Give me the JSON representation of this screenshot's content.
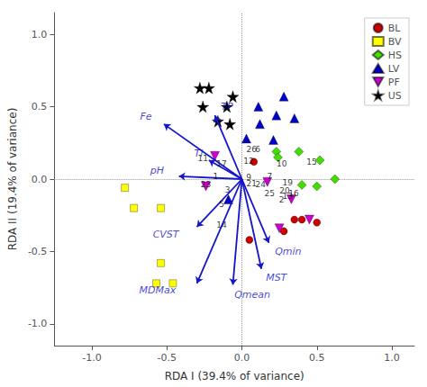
{
  "chart_data": {
    "type": "scatter",
    "title": "",
    "xlabel": "RDA I (39.4% of variance)",
    "ylabel": "RDA II (19.4% of variance)",
    "xlim": [
      -1.25,
      1.15
    ],
    "ylim": [
      -1.15,
      1.15
    ],
    "xticks": [
      {
        "value": -1.0,
        "label": "-1.0"
      },
      -0.5,
      {
        "value": 0.0,
        "label": "0.0"
      },
      0.5,
      {
        "value": 1.0,
        "label": "1.0"
      }
    ],
    "yticks": [
      {
        "value": -1.0,
        "label": "-1.0"
      },
      -0.5,
      {
        "value": 0.0,
        "label": "0.0"
      },
      0.5,
      {
        "value": 1.0,
        "label": "1.0"
      }
    ],
    "grid": false,
    "legend": "upper right",
    "origin": [
      0,
      0
    ],
    "arrow_color": "#1414CC",
    "arrows": [
      {
        "text": "Fe",
        "x": -0.52,
        "y": 0.38,
        "text_x": -0.6,
        "text_y": 0.43
      },
      {
        "text": "TP",
        "x": -0.18,
        "y": 0.44,
        "text_x": -0.14,
        "text_y": 0.5
      },
      {
        "text": "pH",
        "x": -0.42,
        "y": 0.02,
        "text_x": -0.52,
        "text_y": 0.06
      },
      {
        "text": "Ti",
        "x": -0.22,
        "y": 0.13,
        "text_x": -0.26,
        "text_y": 0.18
      },
      {
        "text": "CVST",
        "x": -0.3,
        "y": -0.33,
        "text_x": -0.42,
        "text_y": -0.38
      },
      {
        "text": "MDMax",
        "x": -0.3,
        "y": -0.72,
        "text_x": -0.44,
        "text_y": -0.77
      },
      {
        "text": "Qmean",
        "x": -0.06,
        "y": -0.73,
        "text_x": -0.05,
        "text_y": -0.8
      },
      {
        "text": "Qmin",
        "x": 0.18,
        "y": -0.44,
        "text_x": 0.22,
        "text_y": -0.5
      },
      {
        "text": "MST",
        "x": 0.13,
        "y": -0.62,
        "text_x": 0.16,
        "text_y": -0.68
      }
    ],
    "series": [
      {
        "name": "BL",
        "color": "#CC0000",
        "marker": "circle",
        "values": [
          [
            0.08,
            0.12
          ],
          [
            0.35,
            -0.28
          ],
          [
            0.4,
            -0.28
          ],
          [
            0.28,
            -0.36
          ],
          [
            0.5,
            -0.3
          ],
          [
            0.05,
            -0.42
          ]
        ]
      },
      {
        "name": "BV",
        "color": "#FFFF00",
        "marker": "square",
        "values": [
          [
            -0.78,
            -0.06
          ],
          [
            -0.72,
            -0.2
          ],
          [
            -0.54,
            -0.2
          ],
          [
            -0.54,
            -0.58
          ],
          [
            -0.46,
            -0.72
          ],
          [
            -0.57,
            -0.72
          ]
        ]
      },
      {
        "name": "HS",
        "color": "#44DD00",
        "marker": "diamond",
        "values": [
          [
            0.52,
            0.13
          ],
          [
            0.62,
            0.0
          ],
          [
            0.5,
            -0.05
          ],
          [
            0.38,
            0.19
          ],
          [
            0.4,
            -0.04
          ],
          [
            0.23,
            0.19
          ],
          [
            0.24,
            0.15
          ]
        ]
      },
      {
        "name": "LV",
        "color": "#0000CC",
        "marker": "triangle-up",
        "values": [
          [
            0.03,
            0.28
          ],
          [
            0.12,
            0.38
          ],
          [
            0.21,
            0.27
          ],
          [
            0.28,
            0.57
          ],
          [
            0.11,
            0.5
          ],
          [
            0.23,
            0.44
          ],
          [
            0.35,
            0.42
          ],
          [
            -0.09,
            -0.14
          ]
        ]
      },
      {
        "name": "PF",
        "color": "#CC00CC",
        "marker": "triangle-down",
        "values": [
          [
            -0.18,
            0.16
          ],
          [
            -0.24,
            -0.05
          ],
          [
            0.17,
            -0.02
          ],
          [
            0.25,
            -0.34
          ],
          [
            0.45,
            -0.28
          ],
          [
            0.33,
            -0.14
          ]
        ]
      },
      {
        "name": "US",
        "color": "#000000",
        "marker": "star",
        "values": [
          [
            -0.22,
            0.63
          ],
          [
            -0.28,
            0.63
          ],
          [
            -0.06,
            0.57
          ],
          [
            -0.26,
            0.5
          ],
          [
            -0.1,
            0.5
          ],
          [
            -0.16,
            0.4
          ],
          [
            -0.08,
            0.38
          ]
        ]
      }
    ],
    "annotations": [
      {
        "text": "1",
        "x": -0.175,
        "y": 0.02
      },
      {
        "text": "3",
        "x": -0.095,
        "y": -0.075
      },
      {
        "text": "5",
        "x": -0.135,
        "y": -0.175
      },
      {
        "text": "7",
        "x": 0.185,
        "y": 0.02
      },
      {
        "text": "9",
        "x": 0.045,
        "y": 0.01
      },
      {
        "text": "10",
        "x": 0.265,
        "y": 0.105
      },
      {
        "text": "11",
        "x": -0.26,
        "y": 0.145
      },
      {
        "text": "12",
        "x": 0.045,
        "y": 0.125
      },
      {
        "text": "13",
        "x": 0.305,
        "y": -0.115
      },
      {
        "text": "14",
        "x": -0.135,
        "y": -0.315
      },
      {
        "text": "15",
        "x": 0.465,
        "y": 0.12
      },
      {
        "text": "16",
        "x": 0.345,
        "y": -0.1
      },
      {
        "text": "17",
        "x": -0.135,
        "y": 0.105
      },
      {
        "text": "19",
        "x": 0.305,
        "y": -0.025
      },
      {
        "text": "20",
        "x": 0.285,
        "y": -0.08
      },
      {
        "text": "21",
        "x": 0.065,
        "y": -0.03
      },
      {
        "text": "23",
        "x": -0.24,
        "y": -0.038
      },
      {
        "text": "24",
        "x": 0.125,
        "y": -0.038
      },
      {
        "text": "25",
        "x": 0.185,
        "y": -0.1
      },
      {
        "text": "26",
        "x": 0.065,
        "y": 0.205
      },
      {
        "text": "2",
        "x": 0.265,
        "y": -0.14
      },
      {
        "text": "6",
        "x": 0.105,
        "y": 0.205
      }
    ]
  }
}
